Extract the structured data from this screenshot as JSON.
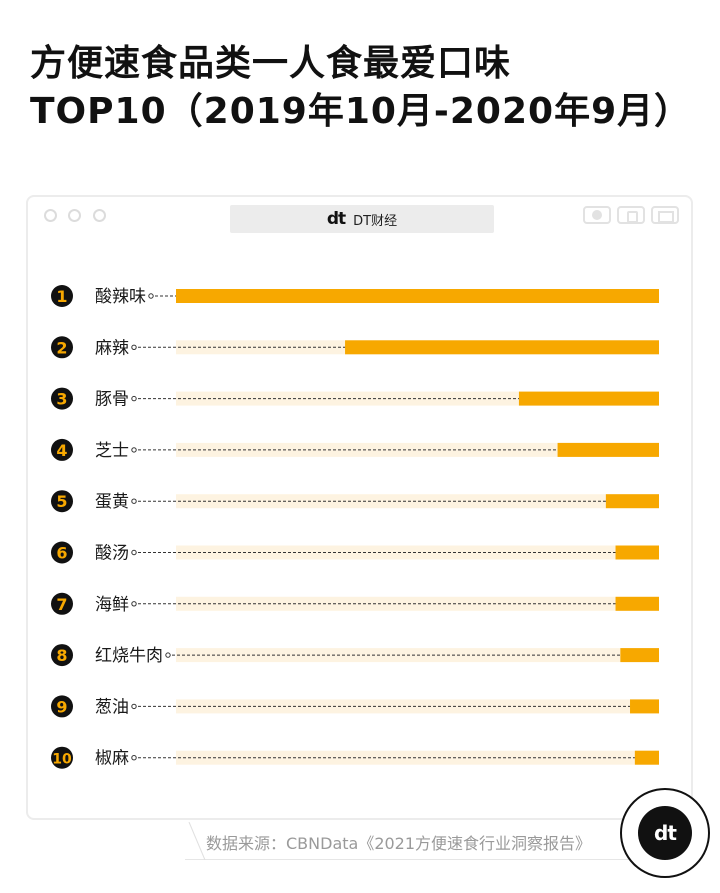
{
  "header": {
    "title_line1": "方便速食品类一人食最爱口味",
    "title_line2": "TOP10（2019年10月-2020年9月）"
  },
  "window": {
    "logo": "dt",
    "address": "DT财经"
  },
  "source": "数据来源：CBNData《2021方便速食行业洞察报告》",
  "badge": "dt",
  "colors": {
    "bar": "#f7a800",
    "track": "#fdf3e1",
    "rank_circle": "#111111",
    "rank_number": "#f7a800"
  },
  "chart_data": {
    "type": "bar",
    "orientation": "horizontal",
    "categories": [
      "酸辣味",
      "麻辣",
      "豚骨",
      "芝士",
      "蛋黄",
      "酸汤",
      "海鲜",
      "红烧牛肉",
      "葱油",
      "椒麻"
    ],
    "ranks": [
      "1",
      "2",
      "3",
      "4",
      "5",
      "6",
      "7",
      "8",
      "9",
      "10"
    ],
    "values": [
      100,
      65,
      29,
      21,
      11,
      9,
      9,
      8,
      6,
      5
    ],
    "xlim": [
      0,
      100
    ],
    "title": "",
    "xlabel": "",
    "ylabel": ""
  }
}
